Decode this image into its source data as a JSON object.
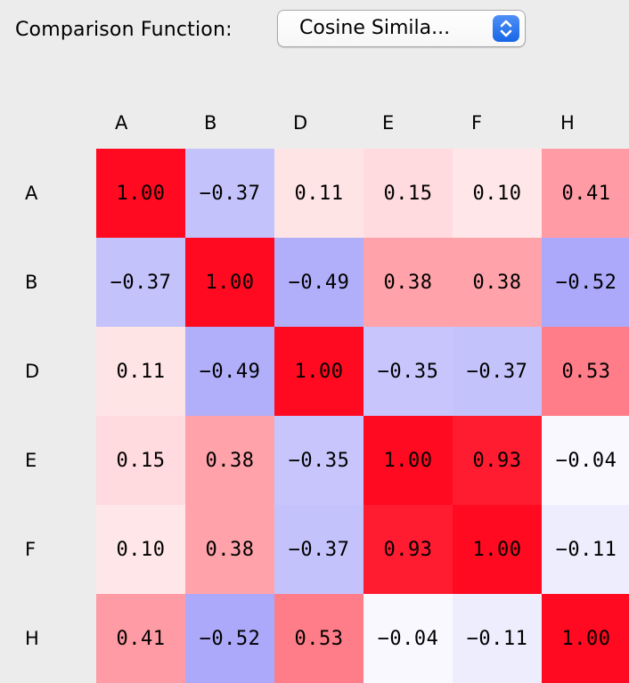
{
  "toolbar": {
    "label": "Comparison Function:",
    "select_value": "Cosine Simila..."
  },
  "icons": {
    "select_arrows": "chevron-up-down-icon"
  },
  "chart_data": {
    "type": "heatmap",
    "columns": [
      "A",
      "B",
      "D",
      "E",
      "F",
      "H"
    ],
    "rows": [
      "A",
      "B",
      "D",
      "E",
      "F",
      "H"
    ],
    "values": [
      [
        1.0,
        -0.37,
        0.11,
        0.15,
        0.1,
        0.41
      ],
      [
        -0.37,
        1.0,
        -0.49,
        0.38,
        0.38,
        -0.52
      ],
      [
        0.11,
        -0.49,
        1.0,
        -0.35,
        -0.37,
        0.53
      ],
      [
        0.15,
        0.38,
        -0.35,
        1.0,
        0.93,
        -0.04
      ],
      [
        0.1,
        0.38,
        -0.37,
        0.93,
        1.0,
        -0.11
      ],
      [
        0.41,
        -0.52,
        0.53,
        -0.04,
        -0.11,
        1.0
      ]
    ],
    "cell_labels": [
      [
        "1.00",
        "−0.37",
        "0.11",
        "0.15",
        "0.10",
        "0.41"
      ],
      [
        "−0.37",
        "1.00",
        "−0.49",
        "0.38",
        "0.38",
        "−0.52"
      ],
      [
        "0.11",
        "−0.49",
        "1.00",
        "−0.35",
        "−0.37",
        "0.53"
      ],
      [
        "0.15",
        "0.38",
        "−0.35",
        "1.00",
        "0.93",
        "−0.04"
      ],
      [
        "0.10",
        "0.38",
        "−0.37",
        "0.93",
        "1.00",
        "−0.11"
      ],
      [
        "0.41",
        "−0.52",
        "0.53",
        "−0.04",
        "−0.11",
        "1.00"
      ]
    ],
    "colors": {
      "positive": "#ff0a20",
      "negative": "#5f5af5",
      "zero": "#ffffff"
    },
    "value_range": [
      -1,
      1
    ]
  }
}
